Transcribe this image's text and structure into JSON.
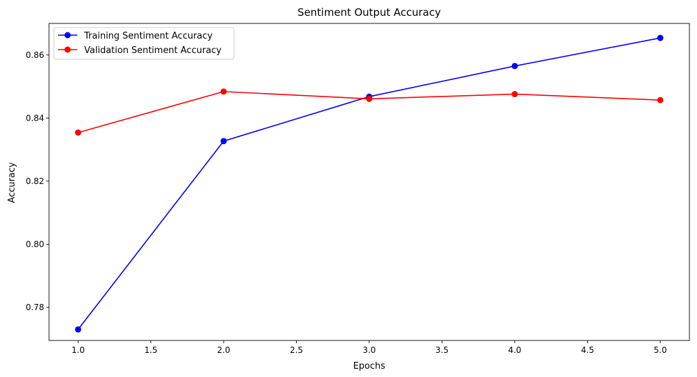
{
  "chart_data": {
    "type": "line",
    "title": "Sentiment Output Accuracy",
    "xlabel": "Epochs",
    "ylabel": "Accuracy",
    "xlim": [
      0.8,
      5.2
    ],
    "ylim": [
      0.7695,
      0.87
    ],
    "xticks": [
      1.0,
      1.5,
      2.0,
      2.5,
      3.0,
      3.5,
      4.0,
      4.5,
      5.0
    ],
    "xtick_labels": [
      "1.0",
      "1.5",
      "2.0",
      "2.5",
      "3.0",
      "3.5",
      "4.0",
      "4.5",
      "5.0"
    ],
    "yticks": [
      0.78,
      0.8,
      0.82,
      0.84,
      0.86
    ],
    "ytick_labels": [
      "0.78",
      "0.80",
      "0.82",
      "0.84",
      "0.86"
    ],
    "grid": false,
    "legend_position": "top-left",
    "x": [
      1,
      2,
      3,
      4,
      5
    ],
    "series": [
      {
        "name": "Training Sentiment Accuracy",
        "color": "#0000ff",
        "marker": "circle",
        "values": [
          0.773,
          0.8327,
          0.8468,
          0.8565,
          0.8654
        ]
      },
      {
        "name": "Validation Sentiment Accuracy",
        "color": "#ff0000",
        "marker": "circle",
        "values": [
          0.8354,
          0.8484,
          0.8461,
          0.8476,
          0.8457
        ]
      }
    ]
  }
}
